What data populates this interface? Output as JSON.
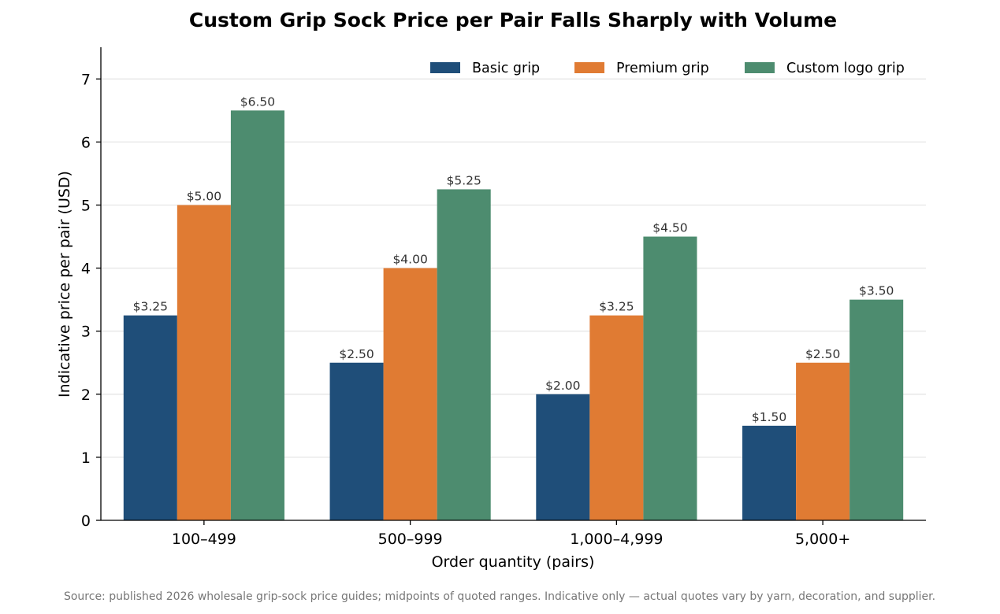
{
  "chart_data": {
    "type": "bar",
    "title": "Custom Grip Sock Price per Pair Falls Sharply with Volume",
    "xlabel": "Order quantity (pairs)",
    "ylabel": "Indicative price per pair (USD)",
    "categories": [
      "100–499",
      "500–999",
      "1,000–4,999",
      "5,000+"
    ],
    "series": [
      {
        "name": "Basic grip",
        "color": "#1f4e79",
        "values": [
          3.25,
          2.5,
          2.0,
          1.5
        ],
        "labels": [
          "$3.25",
          "$2.50",
          "$2.00",
          "$1.50"
        ]
      },
      {
        "name": "Premium grip",
        "color": "#e07b33",
        "values": [
          5.0,
          4.0,
          3.25,
          2.5
        ],
        "labels": [
          "$5.00",
          "$4.00",
          "$3.25",
          "$2.50"
        ]
      },
      {
        "name": "Custom logo grip",
        "color": "#4d8c6f",
        "values": [
          6.5,
          5.25,
          4.5,
          3.5
        ],
        "labels": [
          "$6.50",
          "$5.25",
          "$4.50",
          "$3.50"
        ]
      }
    ],
    "ylim": [
      0,
      7.5
    ],
    "yticks": [
      "0",
      "1",
      "2",
      "3",
      "4",
      "5",
      "6",
      "7"
    ],
    "grid": true,
    "legend_position": "top-right",
    "source": "Source: published 2026 wholesale grip-sock price guides; midpoints of quoted ranges. Indicative only — actual quotes vary by yarn, decoration, and supplier."
  }
}
